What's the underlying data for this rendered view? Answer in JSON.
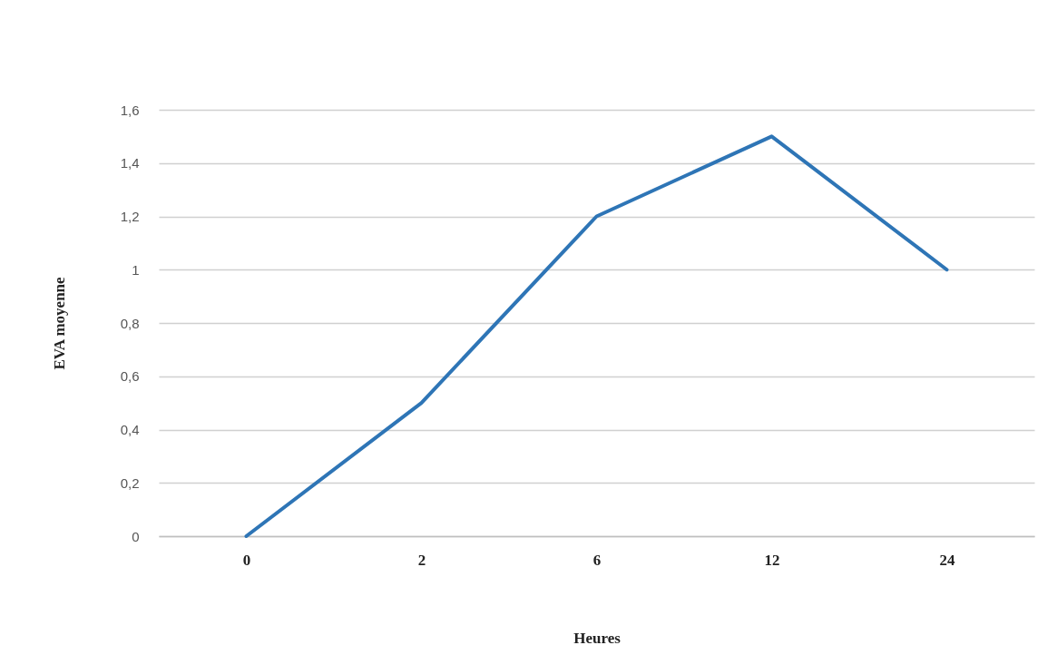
{
  "chart_data": {
    "type": "line",
    "xlabel": "Heures",
    "ylabel": "EVA moyenne",
    "categories": [
      "0",
      "2",
      "6",
      "12",
      "24"
    ],
    "series": [
      {
        "color": "#2e75b6",
        "values": [
          0,
          0.5,
          1.2,
          1.5,
          1.0
        ]
      }
    ],
    "ylim": [
      0,
      1.6
    ],
    "yticks": [
      0,
      {
        "value": 0.2,
        "label": "0,2"
      },
      {
        "value": 0.4,
        "label": "0,4"
      },
      {
        "value": 0.6,
        "label": "0,6"
      },
      {
        "value": 0.8,
        "label": "0,8"
      },
      1,
      {
        "value": 1.2,
        "label": "1,2"
      },
      {
        "value": 1.4,
        "label": "1,4"
      },
      {
        "value": 1.6,
        "label": "1,6"
      }
    ],
    "grid": "y",
    "marker": "none",
    "line_style": "solid",
    "legend": false
  }
}
